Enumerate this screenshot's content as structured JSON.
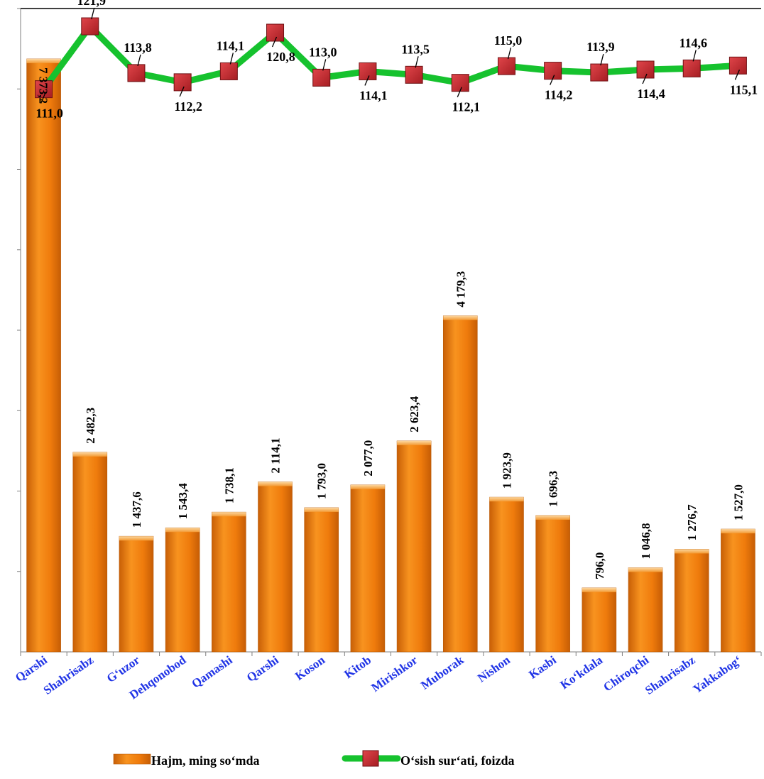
{
  "chart_data": {
    "type": "bar",
    "categories": [
      "Qarshi",
      "Shahrisabz",
      "G‘uzor",
      "Dehqonobod",
      "Qamashi",
      "Qarshi",
      "Koson",
      "Kitob",
      "Mirishkor",
      "Muborak",
      "Nishon",
      "Kasbi",
      "Ko‘kdala",
      "Chiroqchi",
      "Shahrisabz",
      "Yakkabog‘"
    ],
    "series": [
      {
        "name": "Hajm, ming so‘mda",
        "type": "bar",
        "values": [
          7373.2,
          2482.3,
          1437.6,
          1543.4,
          1738.1,
          2114.1,
          1793.0,
          2077.0,
          2623.4,
          4179.3,
          1923.9,
          1696.3,
          796.0,
          1046.8,
          1276.7,
          1527.0
        ],
        "labels": [
          "7 373,2",
          "2 482,3",
          "1 437,6",
          "1 543,4",
          "1 738,1",
          "2 114,1",
          "1 793,0",
          "2 077,0",
          "2 623,4",
          "4 179,3",
          "1 923,9",
          "1 696,3",
          "796,0",
          "1 046,8",
          "1 276,7",
          "1 527,0"
        ]
      },
      {
        "name": "O‘sish sur‘ati, foizda",
        "type": "line",
        "values": [
          111.0,
          121.9,
          113.8,
          112.2,
          114.1,
          120.8,
          113.0,
          114.1,
          113.5,
          112.1,
          115.0,
          114.2,
          113.9,
          114.4,
          114.6,
          115.1
        ],
        "labels": [
          "111,0",
          "121,9",
          "113,8",
          "112,2",
          "114,1",
          "120,8",
          "113,0",
          "114,1",
          "113,5",
          "112,1",
          "115,0",
          "114,2",
          "113,9",
          "114,4",
          "114,6",
          "115,1"
        ]
      }
    ],
    "ylim": [
      0,
      8000
    ],
    "grid": false,
    "legend": "bottom",
    "colors": {
      "bar": "#f07d0e",
      "line": "#16c22e",
      "marker": "#c1272d",
      "category_text": "#1f33e6"
    }
  }
}
